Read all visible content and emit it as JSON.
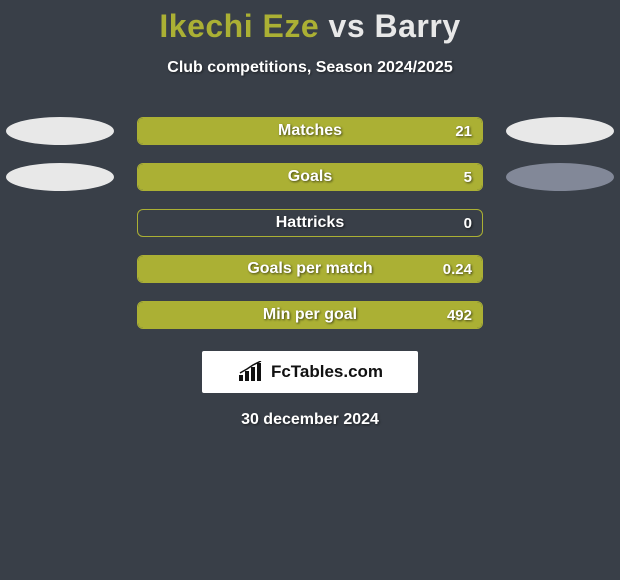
{
  "background_color": "#393f48",
  "title": {
    "player1_name": "Ikechi Eze",
    "player1_color": "#abb034",
    "vs": "vs",
    "player2_name": "Barry",
    "player2_color": "#e8e8e8",
    "fontsize": 32
  },
  "subtitle": {
    "text": "Club competitions, Season 2024/2025",
    "fontsize": 16,
    "color": "#ffffff"
  },
  "bar_style": {
    "track_width": 346,
    "track_height": 28,
    "border_radius": 6,
    "label_color": "#ffffff",
    "label_fontsize": 16,
    "value_fontsize": 15
  },
  "stats": [
    {
      "label": "Matches",
      "value": "21",
      "left_ellipse_color": "#e8e8e8",
      "right_ellipse_color": "#e8e8e8",
      "fill_color": "#abb034",
      "border_color": "#abb034",
      "fill_side": "left",
      "fill_percent": 100
    },
    {
      "label": "Goals",
      "value": "5",
      "left_ellipse_color": "#e8e8e8",
      "right_ellipse_color": "#828898",
      "fill_color": "#abb034",
      "border_color": "#abb034",
      "fill_side": "left",
      "fill_percent": 100
    },
    {
      "label": "Hattricks",
      "value": "0",
      "left_ellipse_color": null,
      "right_ellipse_color": null,
      "fill_color": "#abb034",
      "border_color": "#abb034",
      "fill_side": "left",
      "fill_percent": 0
    },
    {
      "label": "Goals per match",
      "value": "0.24",
      "left_ellipse_color": null,
      "right_ellipse_color": null,
      "fill_color": "#abb034",
      "border_color": "#abb034",
      "fill_side": "left",
      "fill_percent": 100
    },
    {
      "label": "Min per goal",
      "value": "492",
      "left_ellipse_color": null,
      "right_ellipse_color": null,
      "fill_color": "#abb034",
      "border_color": "#abb034",
      "fill_side": "left",
      "fill_percent": 100
    }
  ],
  "brand": {
    "text": "FcTables.com",
    "icon_name": "bars-trend-icon",
    "box_bg": "#ffffff",
    "text_color": "#111111"
  },
  "date": {
    "text": "30 december 2024",
    "fontsize": 16,
    "color": "#ffffff"
  }
}
